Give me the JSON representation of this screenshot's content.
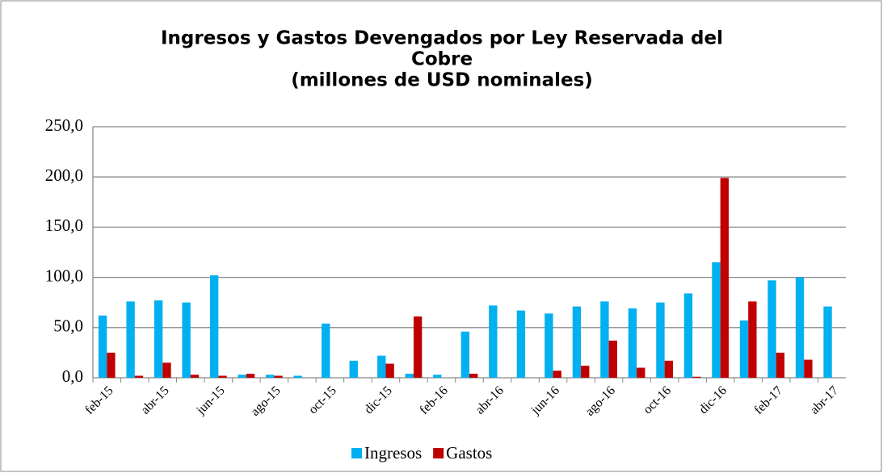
{
  "chart_data": {
    "type": "bar",
    "title": [
      "Ingresos y Gastos Devengados por Ley Reservada del",
      "Cobre",
      "(millones de USD nominales)"
    ],
    "categories": [
      "feb-15",
      null,
      "abr-15",
      null,
      "jun-15",
      null,
      "ago-15",
      null,
      "oct-15",
      null,
      "dic-15",
      null,
      "feb-16",
      null,
      "abr-16",
      null,
      "jun-16",
      null,
      "ago-16",
      null,
      "oct-16",
      null,
      "dic-16",
      null,
      "feb-17",
      null,
      "abr-17"
    ],
    "series": [
      {
        "name": "Ingresos",
        "color": "#00b0f0",
        "values": [
          62,
          76,
          77,
          75,
          102,
          3,
          3,
          2,
          54,
          17,
          22,
          4,
          3,
          46,
          72,
          67,
          64,
          71,
          76,
          69,
          75,
          84,
          115,
          57,
          97,
          100,
          71
        ]
      },
      {
        "name": "Gastos",
        "color": "#c00000",
        "values": [
          25,
          2,
          15,
          3,
          2,
          4,
          2,
          0,
          0,
          0,
          14,
          61,
          0,
          4,
          0,
          0,
          7,
          12,
          37,
          10,
          17,
          1,
          199,
          76,
          25,
          18,
          0
        ]
      }
    ],
    "ylim": [
      0,
      250
    ],
    "yticks": [
      {
        "value": 0,
        "label": "0,0"
      },
      {
        "value": 50,
        "label": "50,0"
      },
      {
        "value": 100,
        "label": "100,0"
      },
      {
        "value": 150,
        "label": "150,0"
      },
      {
        "value": 200,
        "label": "200,0"
      },
      {
        "value": 250,
        "label": "250,0"
      }
    ],
    "grid": true,
    "legend": "bottom"
  }
}
